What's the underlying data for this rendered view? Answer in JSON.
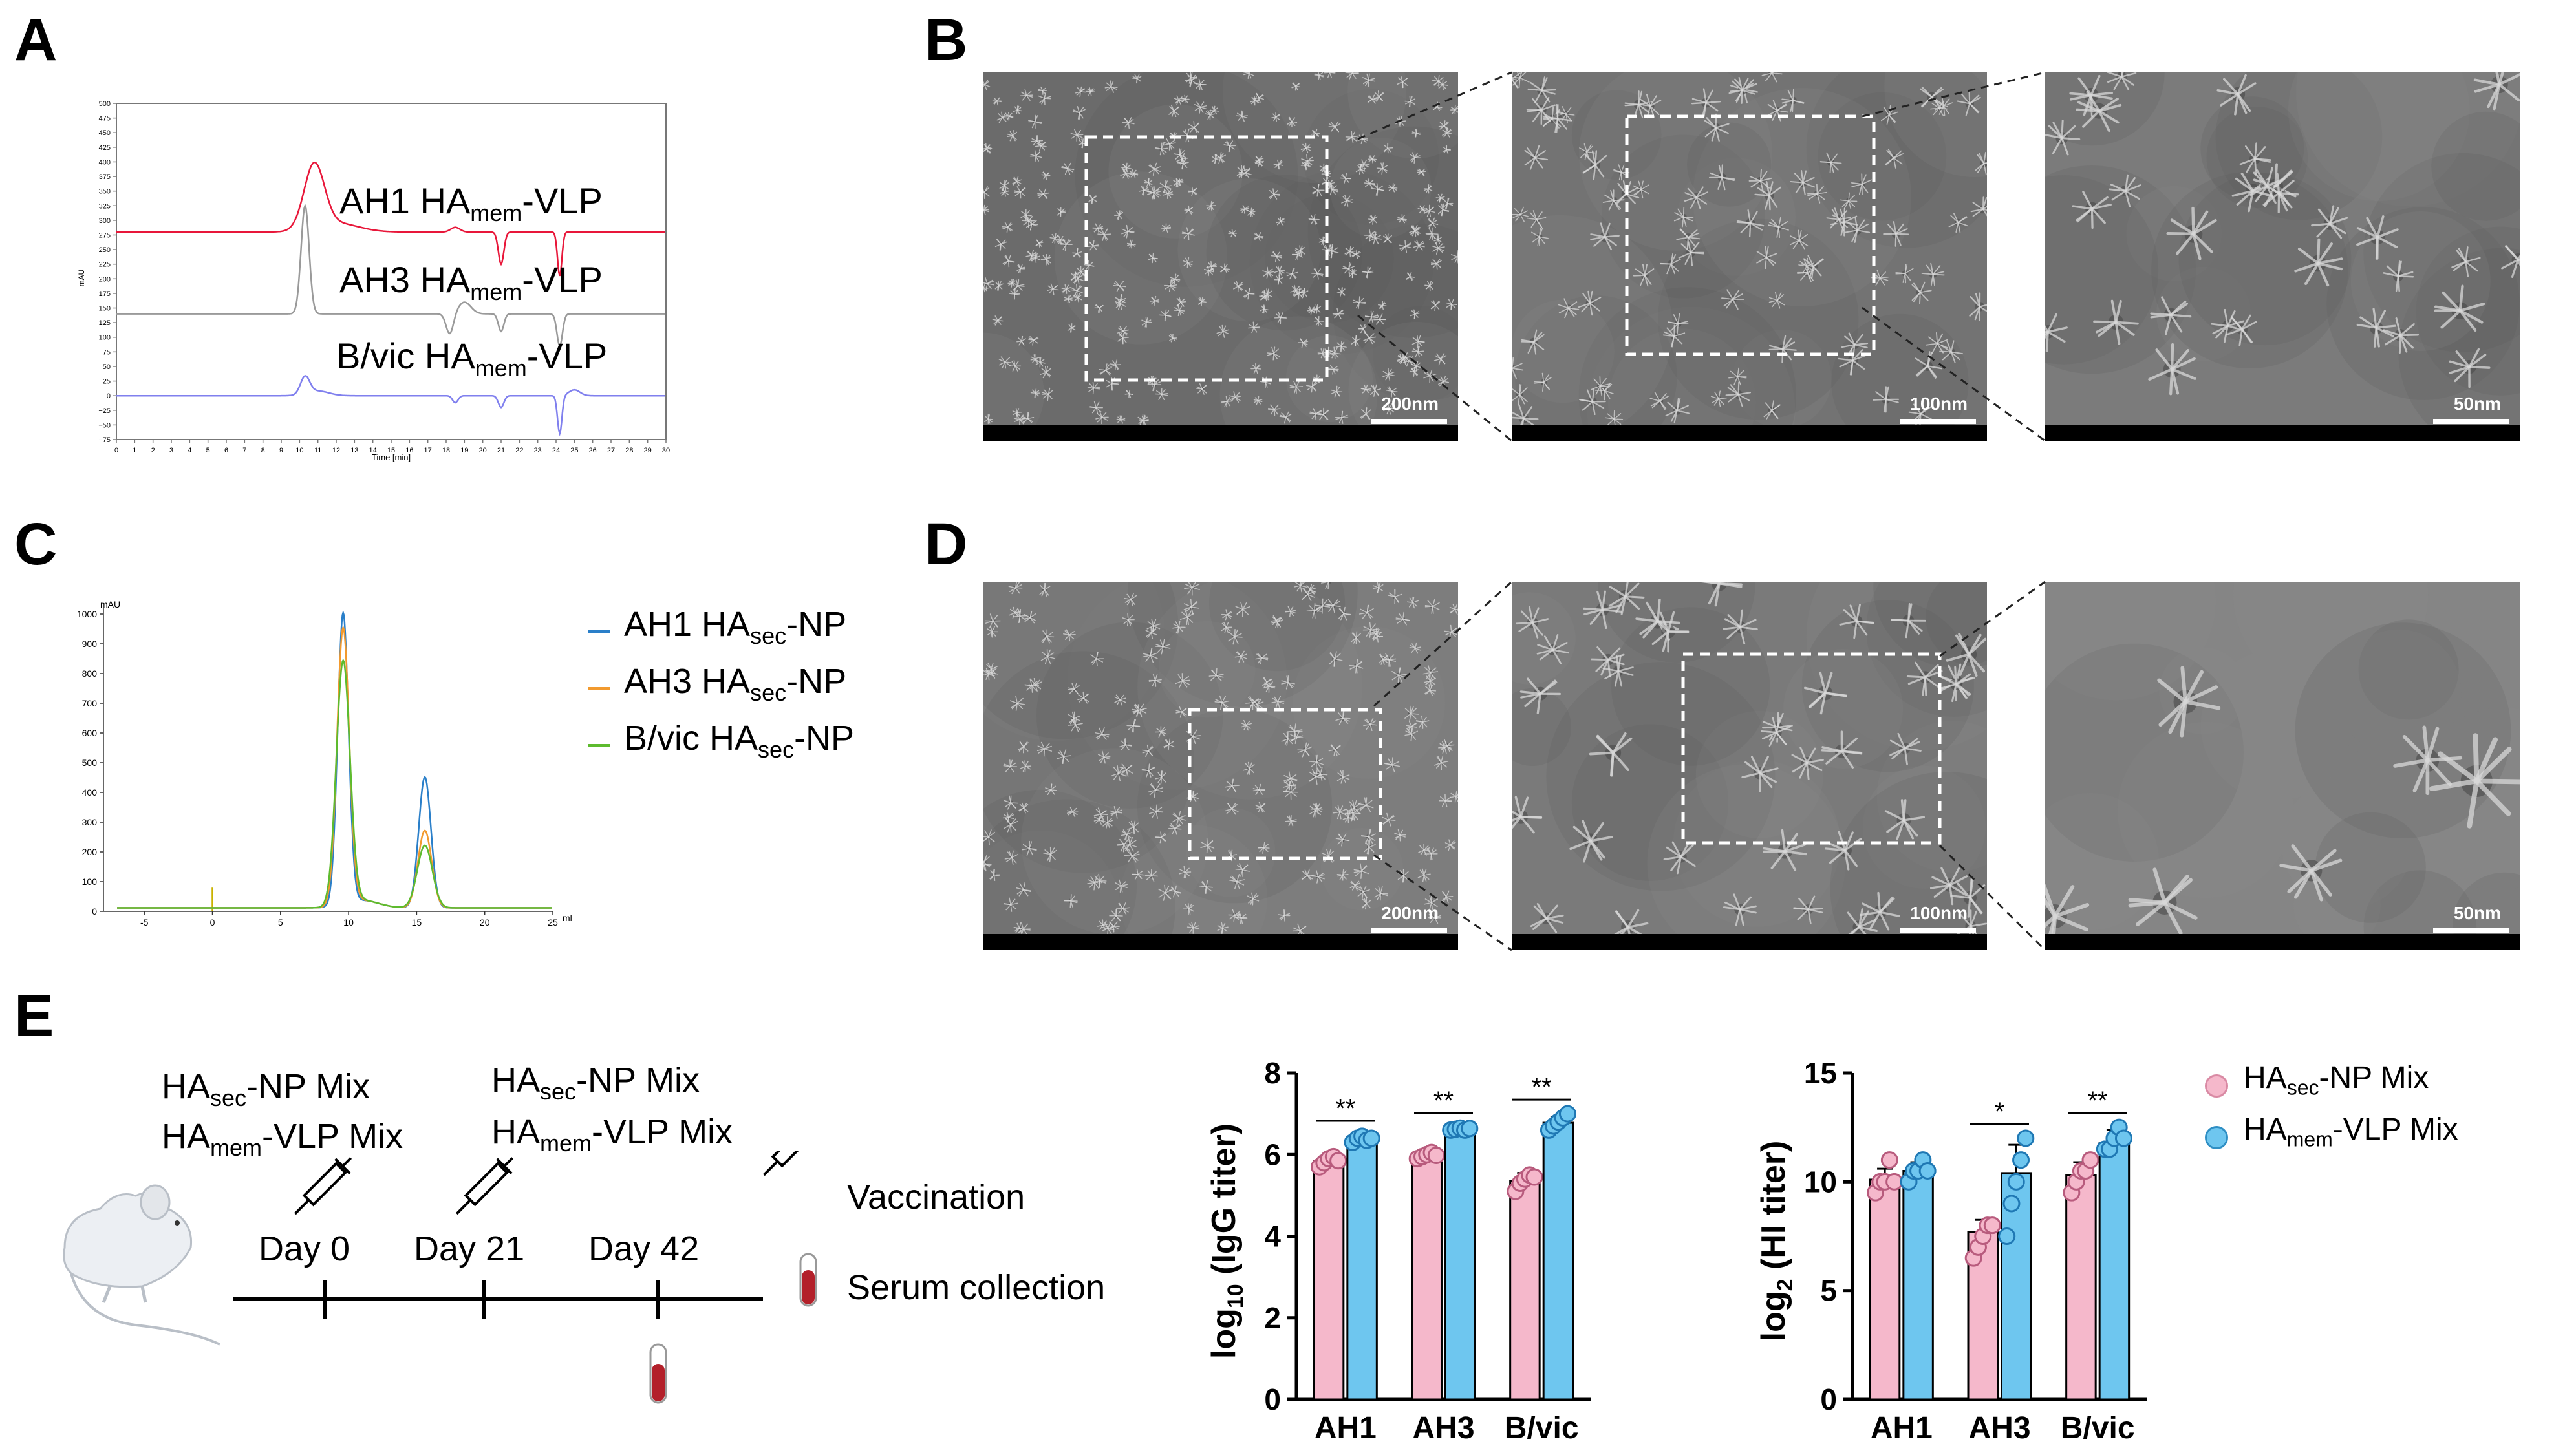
{
  "panel_letters": {
    "a": "A",
    "b": "B",
    "c": "C",
    "d": "D",
    "e": "E"
  },
  "chart_data": [
    {
      "id": "A",
      "type": "line",
      "xlabel": "Time [min]",
      "ylabel": "mAU",
      "xlim": [
        0,
        30
      ],
      "ylim": [
        -75,
        500
      ],
      "x_ticks": [
        "0",
        "1",
        "2",
        "3",
        "4",
        "5",
        "6",
        "7",
        "8",
        "9",
        "10",
        "11",
        "12",
        "13",
        "14",
        "15",
        "16",
        "17",
        "18",
        "19",
        "20",
        "21",
        "22",
        "23",
        "24",
        "25",
        "26",
        "27",
        "28",
        "29",
        "30"
      ],
      "y_ticks": [
        "500",
        "475",
        "450",
        "425",
        "400",
        "375",
        "350",
        "325",
        "300",
        "275",
        "250",
        "225",
        "200",
        "175",
        "150",
        "125",
        "100",
        "75",
        "50",
        "25",
        "0",
        "−25",
        "−50",
        "−75"
      ],
      "series": [
        {
          "name_main": "AH1 HA",
          "name_sub": "mem",
          "name_tail": "-VLP",
          "color": "#e8173a",
          "baseline": 280
        },
        {
          "name_main": "AH3 HA",
          "name_sub": "mem",
          "name_tail": "-VLP",
          "color": "#9a9a9a",
          "baseline": 140
        },
        {
          "name_main": "B/vic HA",
          "name_sub": "mem",
          "name_tail": "-VLP",
          "color": "#8080ee",
          "baseline": 0
        }
      ]
    },
    {
      "id": "C",
      "type": "line",
      "xlabel": "ml",
      "ylabel": "mAU",
      "xlim": [
        -8,
        25
      ],
      "ylim": [
        0,
        1000
      ],
      "x_ticks": [
        "-5",
        "0",
        "5",
        "10",
        "15",
        "20",
        "25"
      ],
      "y_ticks": [
        "1000",
        "900",
        "800",
        "700",
        "600",
        "500",
        "400",
        "300",
        "200",
        "100",
        "0"
      ],
      "series": [
        {
          "name_main": "AH1 HA",
          "name_sub": "sec",
          "name_tail": "-NP",
          "color": "#2a7fc9",
          "peak1": 980,
          "peak2": 440
        },
        {
          "name_main": "AH3 HA",
          "name_sub": "sec",
          "name_tail": "-NP",
          "color": "#f29a2e",
          "peak1": 930,
          "peak2": 260
        },
        {
          "name_main": "B/vic HA",
          "name_sub": "sec",
          "name_tail": "-NP",
          "color": "#5dbb2e",
          "peak1": 820,
          "peak2": 210
        }
      ]
    },
    {
      "id": "E-igg",
      "type": "bar",
      "ylabel_main": "log",
      "ylabel_sub": "10",
      "ylabel_tail": " (IgG titer)",
      "categories": [
        "AH1",
        "AH3",
        "B/vic"
      ],
      "y_ticks": [
        "0",
        "2",
        "4",
        "6",
        "8"
      ],
      "ylim": [
        0,
        8
      ],
      "series": [
        {
          "key": "sec",
          "values": [
            5.85,
            5.98,
            5.35
          ],
          "errors": [
            0.12,
            0.08,
            0.2
          ],
          "points": [
            [
              5.7,
              5.8,
              5.9,
              5.95,
              5.85
            ],
            [
              5.9,
              5.95,
              6.0,
              6.05,
              5.98
            ],
            [
              5.1,
              5.3,
              5.4,
              5.5,
              5.45
            ]
          ]
        },
        {
          "key": "mem",
          "values": [
            6.38,
            6.62,
            6.78
          ],
          "errors": [
            0.1,
            0.05,
            0.15
          ],
          "points": [
            [
              6.3,
              6.4,
              6.45,
              6.35,
              6.4
            ],
            [
              6.6,
              6.62,
              6.65,
              6.6,
              6.64
            ],
            [
              6.6,
              6.7,
              6.8,
              6.9,
              7.0
            ]
          ]
        }
      ],
      "significance": [
        "**",
        "**",
        "**"
      ]
    },
    {
      "id": "E-hi",
      "type": "bar",
      "ylabel_main": "log",
      "ylabel_sub": "2",
      "ylabel_tail": " (HI titer)",
      "categories": [
        "AH1",
        "AH3",
        "B/vic"
      ],
      "y_ticks": [
        "0",
        "5",
        "10",
        "15"
      ],
      "ylim": [
        0,
        15
      ],
      "series": [
        {
          "key": "sec",
          "values": [
            10.1,
            7.7,
            10.3
          ],
          "errors": [
            0.5,
            0.55,
            0.6
          ],
          "points": [
            [
              9.5,
              10,
              10,
              11,
              10
            ],
            [
              6.5,
              7,
              7.5,
              8,
              8
            ],
            [
              9.5,
              10,
              10.5,
              10.5,
              11
            ]
          ]
        },
        {
          "key": "mem",
          "values": [
            10.5,
            10.4,
            11.8
          ],
          "errors": [
            0.4,
            1.3,
            0.6
          ],
          "points": [
            [
              10,
              10.5,
              10.5,
              11,
              10.5
            ],
            [
              7.5,
              9,
              10,
              11,
              12
            ],
            [
              11.5,
              11.5,
              12,
              12.5,
              12
            ]
          ]
        }
      ],
      "significance": [
        "",
        "*",
        "**"
      ]
    }
  ],
  "scale_bars": {
    "b1": "200nm",
    "b2": "100nm",
    "b3": "50nm",
    "d1": "200nm",
    "d2": "100nm",
    "d3": "50nm"
  },
  "timeline": {
    "mix1_main": "HA",
    "mix1_sub": "sec",
    "mix1_tail": "-NP Mix",
    "mix2_main": "HA",
    "mix2_sub": "mem",
    "mix2_tail": "-VLP Mix",
    "day0": "Day 0",
    "day21": "Day 21",
    "day42": "Day 42",
    "vaccination": "Vaccination",
    "serum": "Serum collection"
  },
  "legend_e": {
    "sec_main": "HA",
    "sec_sub": "sec",
    "sec_tail": "-NP Mix",
    "sec_color": "#f5b8cb",
    "mem_main": "HA",
    "mem_sub": "mem",
    "mem_tail": "-VLP Mix",
    "mem_color": "#6ec6ef"
  }
}
